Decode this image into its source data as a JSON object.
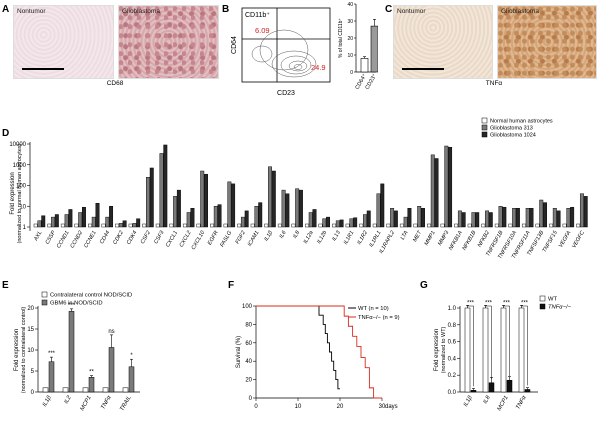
{
  "panel_labels": {
    "A": "A",
    "B": "B",
    "C": "C",
    "D": "D",
    "E": "E",
    "F": "F",
    "G": "G"
  },
  "panelA": {
    "left_label": "Nontumor",
    "right_label": "Glioblastoma",
    "caption": "CD68"
  },
  "panelC": {
    "left_label": "Nontumor",
    "right_label": "Glioblastoma",
    "caption": "TNFα"
  },
  "panelB": {
    "gate_label": "CD11b⁺",
    "xlabel": "CD23",
    "ylabel": "CD64",
    "gate_pct_top": "6.09",
    "gate_pct_right": "24.9",
    "pct_color": "#d32020"
  },
  "colors": {
    "normal": "#ffffff",
    "g313": "#7a7a7a",
    "g1024": "#262626",
    "wt": "#000000",
    "tnf": "#d92b1e",
    "wt_bar": "#ffffff",
    "ko_bar": "#111111"
  },
  "chart_data": [
    {
      "id": "B-bar",
      "type": "bar",
      "categories": [
        "CD64⁺",
        "CD23⁺"
      ],
      "values": [
        8,
        27
      ],
      "errors": [
        1,
        4
      ],
      "ylabel": "% of total CD11b⁺",
      "ylim": [
        0,
        40
      ],
      "yticks": [
        "0",
        "10",
        "20",
        "30",
        "40"
      ],
      "bar_colors": [
        "#ffffff",
        "#9a9a9a"
      ]
    },
    {
      "id": "D",
      "type": "bar",
      "log_scale": true,
      "ylabel": "Fold expression (normalized to normal human astrocytes)",
      "yticks": [
        "1",
        "10",
        "100",
        "1000",
        "10000"
      ],
      "legend": [
        "Normal human astrocytes",
        "Glioblastoma 313",
        "Glioblastoma 1024"
      ],
      "legend_position": "top-right",
      "categories": [
        "AXL",
        "C5SP",
        "CCND1",
        "CCND2",
        "CCNE1",
        "CD44",
        "CDK2",
        "CDK4",
        "CSF2",
        "CSF3",
        "CXCL1",
        "CXCL2",
        "CXCL10",
        "EGFR",
        "FASLG",
        "FGF2",
        "ICAM1",
        "IL1β",
        "IL6",
        "IL8",
        "IL12a",
        "IL12b",
        "IL13",
        "IL1R1",
        "IL1R2",
        "IL1RL1",
        "IL1RAPL2",
        "LTA",
        "MET",
        "MMP1",
        "MMP3",
        "NFKB1A",
        "NFKB1B",
        "NFKB2",
        "TNFRSF1B",
        "TNFRSF10A",
        "TNFRSF11A",
        "TNFSF13B",
        "TNFSF15",
        "VEGFA",
        "VEGFC"
      ],
      "series": [
        {
          "name": "Normal human astrocytes",
          "values": [
            1,
            1,
            1,
            1,
            1,
            1,
            1,
            1,
            1,
            1,
            1,
            1,
            1,
            1,
            1,
            1,
            1,
            1,
            1,
            1,
            1,
            1,
            1,
            1,
            1,
            1,
            1,
            1,
            1,
            1,
            1,
            1,
            1,
            1,
            1,
            1,
            1,
            1,
            1,
            1,
            1
          ]
        },
        {
          "name": "Glioblastoma 313",
          "values": [
            2,
            3,
            4,
            5,
            3,
            3,
            1.5,
            1.5,
            250,
            3500,
            30,
            5,
            500,
            10,
            150,
            3,
            10,
            800,
            60,
            70,
            5,
            2.5,
            2,
            2.5,
            4,
            40,
            8,
            3,
            10,
            3000,
            8000,
            6,
            5,
            6,
            10,
            8,
            8,
            20,
            8,
            8,
            40
          ]
        },
        {
          "name": "Glioblastoma 1024",
          "values": [
            3.5,
            4,
            7,
            9,
            14,
            10,
            2,
            2.5,
            700,
            9000,
            60,
            8,
            350,
            12,
            120,
            6,
            15,
            500,
            40,
            60,
            7,
            3,
            2.2,
            2.8,
            6,
            120,
            6,
            8,
            8,
            2000,
            7000,
            5,
            5,
            5,
            9,
            8,
            8,
            15,
            6,
            9,
            30
          ]
        }
      ]
    },
    {
      "id": "E",
      "type": "bar",
      "ylabel": "Fold expression (normalized to contralateral control)",
      "ylim": [
        0,
        20
      ],
      "yticks": [
        "0",
        "5",
        "10",
        "15",
        "20"
      ],
      "legend": [
        "Contralateral control NOD/SCID",
        "GBM6 in NOD/SCID"
      ],
      "legend_position": "top",
      "categories": [
        "IL1β",
        "IL2",
        "MCP1",
        "TNFα",
        "TRAIL"
      ],
      "series": [
        {
          "name": "Contralateral control NOD/SCID",
          "values": [
            1,
            1,
            1,
            1,
            1
          ]
        },
        {
          "name": "GBM6 in NOD/SCID",
          "values": [
            7.2,
            19.2,
            3.5,
            10.6,
            6
          ],
          "errors": [
            1.1,
            0.6,
            0.4,
            3,
            1.8
          ]
        }
      ],
      "significance": [
        "***",
        "***",
        "**",
        "ns",
        "*"
      ]
    },
    {
      "id": "F",
      "type": "line",
      "ylabel": "Survival (%)",
      "xlabel": "days",
      "ylim": [
        0,
        100
      ],
      "xlim": [
        0,
        30
      ],
      "yticks": [
        "0",
        "20",
        "40",
        "60",
        "80",
        "100"
      ],
      "xticks": [
        "0",
        "10",
        "20",
        "30"
      ],
      "series": [
        {
          "name": "WT",
          "n_label": "WT (n = 10)",
          "x": [
            0,
            15,
            15,
            16,
            16,
            16.5,
            16.5,
            17,
            17,
            17.5,
            17.5,
            18,
            18,
            18.5,
            18.5,
            19,
            19,
            19.5,
            19.5,
            20
          ],
          "y": [
            100,
            100,
            90,
            90,
            80,
            80,
            70,
            70,
            60,
            60,
            50,
            50,
            40,
            40,
            30,
            30,
            20,
            20,
            10,
            10
          ]
        },
        {
          "name": "TNFα−/−",
          "n_label": "TNFα−/− (n = 9)",
          "x": [
            0,
            21,
            21,
            22,
            22,
            23,
            23,
            24,
            24,
            25,
            25,
            26,
            26,
            27,
            27,
            28,
            28,
            30
          ],
          "y": [
            100,
            100,
            89,
            89,
            78,
            78,
            67,
            67,
            56,
            56,
            44,
            44,
            33,
            33,
            11,
            11,
            0,
            0
          ]
        }
      ]
    },
    {
      "id": "G",
      "type": "bar",
      "ylabel": "Fold expression (normalized to WT)",
      "ylim": [
        0,
        1.0
      ],
      "yticks": [
        "0.0",
        "0.2",
        "0.4",
        "0.6",
        "0.8",
        "1.0"
      ],
      "legend": [
        "WT",
        "TNFα−/−"
      ],
      "legend_position": "top-right",
      "categories": [
        "IL1β",
        "IL8",
        "MCP1",
        "TNFα"
      ],
      "series": [
        {
          "name": "WT",
          "values": [
            1,
            1,
            1,
            1
          ],
          "errors": [
            0.02,
            0.02,
            0.02,
            0.02
          ]
        },
        {
          "name": "TNFα−/−",
          "values": [
            0.02,
            0.11,
            0.14,
            0.03
          ],
          "errors": [
            0.01,
            0.05,
            0.03,
            0.01
          ]
        }
      ],
      "significance": [
        "***",
        "***",
        "***",
        "***"
      ]
    }
  ]
}
